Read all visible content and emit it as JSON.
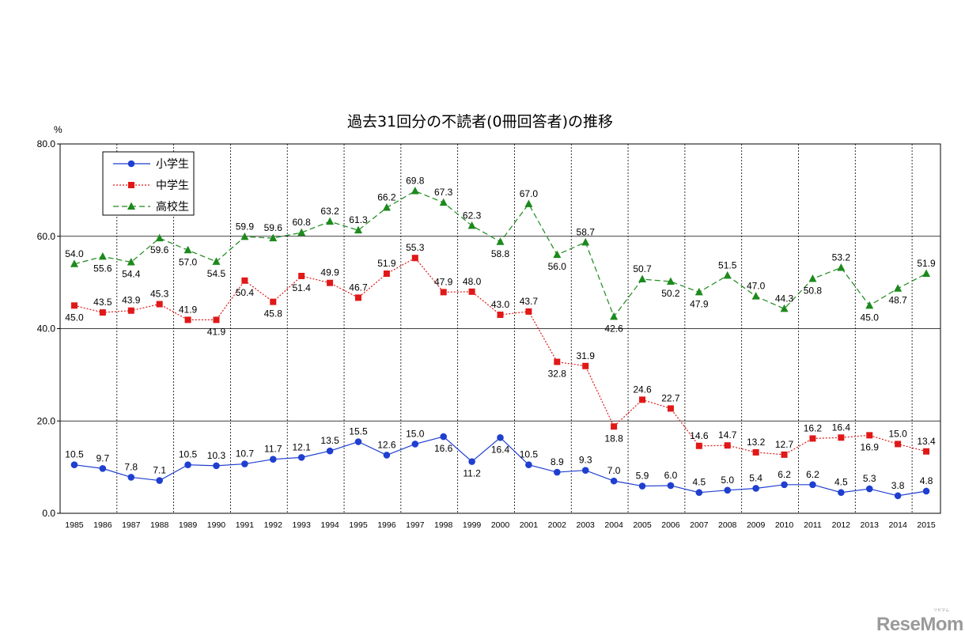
{
  "chart_data": {
    "type": "line",
    "title": "過去31回分の不読者(0冊回答者)の推移",
    "ylabel": "%",
    "ylim": [
      0,
      80
    ],
    "yticks": [
      "0.0",
      "20.0",
      "40.0",
      "60.0",
      "80.0"
    ],
    "grid": "dashed vertical + horizontal",
    "legend_position": "top-left",
    "x": [
      "1985",
      "1986",
      "1987",
      "1988",
      "1989",
      "1990",
      "1991",
      "1992",
      "1993",
      "1994",
      "1995",
      "1996",
      "1997",
      "1998",
      "1999",
      "2000",
      "2001",
      "2002",
      "2003",
      "2004",
      "2005",
      "2006",
      "2007",
      "2008",
      "2009",
      "2010",
      "2011",
      "2012",
      "2013",
      "2014",
      "2015"
    ],
    "series": [
      {
        "name": "小学生",
        "color": "#1f3fd0",
        "marker": "circle",
        "line": "solid",
        "values": [
          10.5,
          9.7,
          7.8,
          7.1,
          10.5,
          10.3,
          10.7,
          11.7,
          12.1,
          13.5,
          15.5,
          12.6,
          15.0,
          16.6,
          11.2,
          16.4,
          10.5,
          8.9,
          9.3,
          7.0,
          5.9,
          6.0,
          4.5,
          5.0,
          5.4,
          6.2,
          6.2,
          4.5,
          5.3,
          3.8,
          4.8
        ],
        "labels": [
          "10.5",
          "9.7",
          "7.8",
          "7.1",
          "10.5",
          "10.3",
          "10.7",
          "11.7",
          "12.1",
          "13.5",
          "15.5",
          "12.6",
          "15.0",
          "16.6",
          "11.2",
          "16.4",
          "10.5",
          "8.9",
          "9.3",
          "7.0",
          "5.9",
          "6.0",
          "4.5",
          "5.0",
          "5.4",
          "6.2",
          "6.2",
          "4.5",
          "5.3",
          "3.8",
          "4.8"
        ],
        "label_pos": [
          "above",
          "above",
          "above",
          "above",
          "above",
          "above",
          "above",
          "above",
          "above",
          "above",
          "above",
          "above",
          "above",
          "below",
          "below",
          "below",
          "above",
          "above",
          "above",
          "above",
          "above",
          "above",
          "above",
          "above",
          "above",
          "above",
          "above",
          "above",
          "above",
          "above",
          "above"
        ]
      },
      {
        "name": "中学生",
        "color": "#e01818",
        "marker": "square",
        "line": "dotted",
        "values": [
          45.0,
          43.5,
          43.9,
          45.3,
          41.9,
          41.9,
          50.4,
          45.8,
          51.4,
          49.9,
          46.7,
          51.9,
          55.3,
          47.9,
          48.0,
          43.0,
          43.7,
          32.8,
          31.9,
          18.8,
          24.6,
          22.7,
          14.6,
          14.7,
          13.2,
          12.7,
          16.2,
          16.4,
          16.9,
          15.0,
          13.4
        ],
        "labels": [
          "45.0",
          "43.5",
          "43.9",
          "45.3",
          "41.9",
          "41.9",
          "50.4",
          "45.8",
          "51.4",
          "49.9",
          "46.7",
          "51.9",
          "55.3",
          "47.9",
          "48.0",
          "43.0",
          "43.7",
          "32.8",
          "31.9",
          "18.8",
          "24.6",
          "22.7",
          "14.6",
          "14.7",
          "13.2",
          "12.7",
          "16.2",
          "16.4",
          "16.9",
          "15.0",
          "13.4"
        ],
        "label_pos": [
          "below",
          "above",
          "above",
          "above",
          "above",
          "below",
          "below",
          "below",
          "below",
          "above",
          "above",
          "above",
          "above",
          "above",
          "above",
          "above",
          "above",
          "below",
          "above",
          "below",
          "above",
          "above",
          "above",
          "above",
          "above",
          "above",
          "above",
          "above",
          "below",
          "above",
          "above"
        ]
      },
      {
        "name": "高校生",
        "color": "#1c8a1c",
        "marker": "triangle",
        "line": "dashed",
        "values": [
          54.0,
          55.6,
          54.4,
          59.6,
          57.0,
          54.5,
          59.9,
          59.6,
          60.8,
          63.2,
          61.3,
          66.2,
          69.8,
          67.3,
          62.3,
          58.8,
          67.0,
          56.0,
          58.7,
          42.6,
          50.7,
          50.2,
          47.9,
          51.5,
          47.0,
          44.3,
          50.8,
          53.2,
          45.0,
          48.7,
          51.9
        ],
        "labels": [
          "54.0",
          "55.6",
          "54.4",
          "59.6",
          "57.0",
          "54.5",
          "59.9",
          "59.6",
          "60.8",
          "63.2",
          "61.3",
          "66.2",
          "69.8",
          "67.3",
          "62.3",
          "58.8",
          "67.0",
          "56.0",
          "58.7",
          "42.6",
          "50.7",
          "50.2",
          "47.9",
          "51.5",
          "47.0",
          "44.3",
          "50.8",
          "53.2",
          "45.0",
          "48.7",
          "51.9"
        ],
        "label_pos": [
          "above",
          "below",
          "below",
          "below",
          "below",
          "below",
          "above",
          "above",
          "above",
          "above",
          "above",
          "above",
          "above",
          "above",
          "above",
          "below",
          "above",
          "below",
          "above",
          "below",
          "above",
          "below",
          "below",
          "above",
          "above",
          "above",
          "below",
          "above",
          "below",
          "below",
          "above"
        ]
      }
    ]
  },
  "watermark": {
    "logo_text": "ReseMom",
    "logo_kana": "リセマム"
  }
}
